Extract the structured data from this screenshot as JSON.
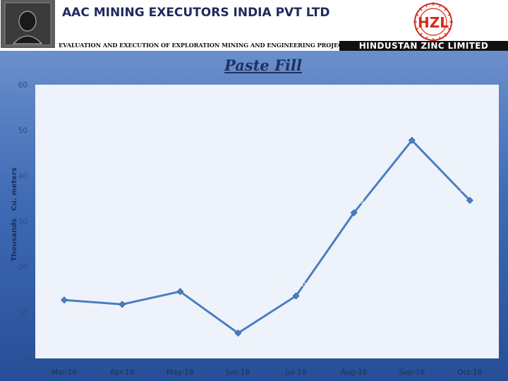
{
  "header": {
    "company_name": "AAC MINING EXECUTORS INDIA PVT LTD",
    "tagline": "EVALUATION AND EXECUTION OF EXPLORATION MINING AND ENGINEERING PROJECTS",
    "partner_name": "HINDUSTAN ZINC LIMITED",
    "partner_logo_text": "HZL"
  },
  "colors": {
    "series": "#4a7ec0",
    "plot_area": "#eef3fb",
    "brand_red": "#d42a1c",
    "title": "#1f3160"
  },
  "chart_data": {
    "type": "line",
    "title": "Paste Fill",
    "ylabel": "Thousands",
    "ylabel_unit": "Cu. meters",
    "categories": [
      "Mar-16",
      "Apr-16",
      "May-16",
      "Jun-16",
      "Jul-16",
      "Aug-16",
      "Sep-16",
      "Oct-16"
    ],
    "values": [
      12.8,
      11.84,
      14.66,
      5.55,
      13.7,
      31.93,
      47.8,
      34.64
    ],
    "data_labels": [
      "12.80",
      "11.84",
      "14.66",
      "5.55",
      "13.70",
      "31.93",
      "47.80",
      "34.64"
    ],
    "ylim": [
      0,
      60
    ],
    "yticks": [
      "0",
      "10",
      "20",
      "30",
      "40",
      "50",
      "60"
    ],
    "grid": false,
    "legend": "none"
  }
}
